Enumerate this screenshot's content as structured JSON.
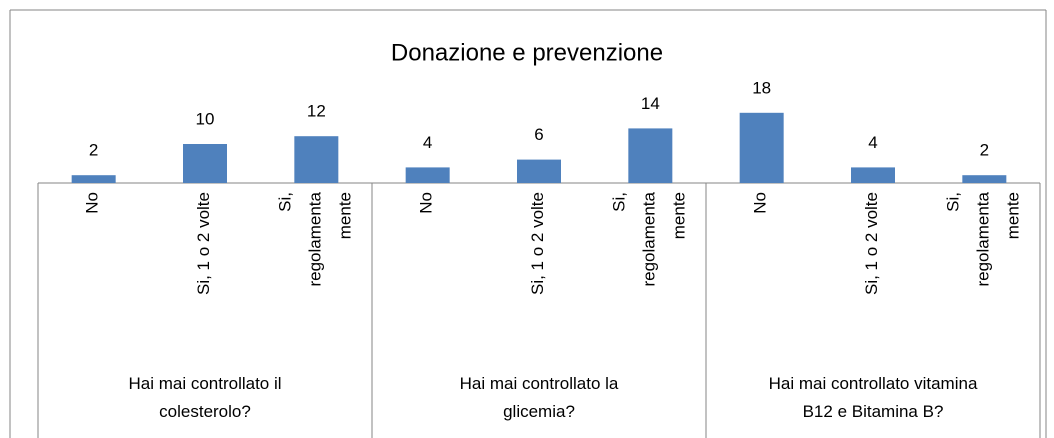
{
  "chart_data": {
    "type": "bar",
    "title": "Donazione e prevenzione",
    "categories": [
      "No",
      "Si, 1 o 2 volte",
      "Si,\nregolamenta\nmente",
      "No",
      "Si, 1 o 2 volte",
      "Si,\nregolamenta\nmente",
      "No",
      "Si, 1 o 2 volte",
      "Si,\nregolamenta\nmente"
    ],
    "groups": [
      {
        "label": "Hai mai controllato il\ncolesterolo?",
        "size": 3
      },
      {
        "label": "Hai mai controllato la\nglicemia?",
        "size": 3
      },
      {
        "label": "Hai mai controllato vitamina\nB12 e Bitamina B?",
        "size": 3
      }
    ],
    "values": [
      2,
      10,
      12,
      4,
      6,
      14,
      18,
      4,
      2
    ],
    "color": "#4f81bd",
    "ylim": [
      0,
      20
    ]
  }
}
